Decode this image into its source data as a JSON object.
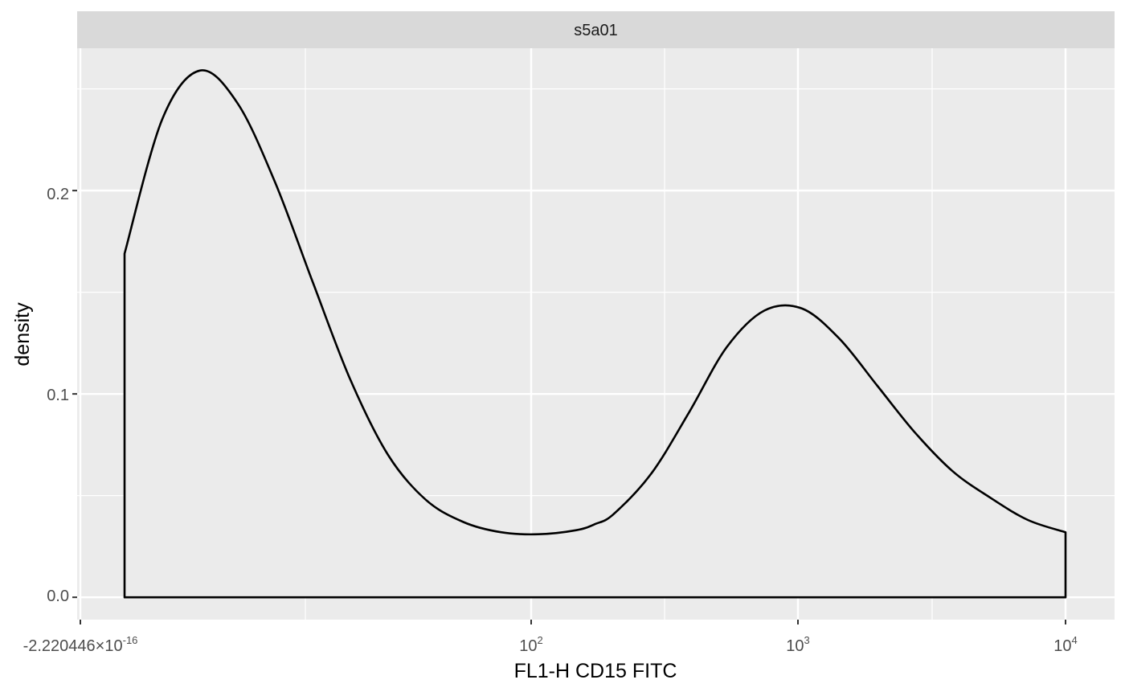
{
  "chart_data": {
    "type": "area",
    "facet_label": "s5a01",
    "xlabel": "FL1-H CD15 FITC",
    "ylabel": "density",
    "x_scale": "biexponential",
    "x_ticks": [
      {
        "label": "-2.220446×10",
        "sup": "-16"
      },
      {
        "label": "10",
        "sup": "2"
      },
      {
        "label": "10",
        "sup": "3"
      },
      {
        "label": "10",
        "sup": "4"
      }
    ],
    "y_ticks": [
      "0.0",
      "0.1",
      "0.2"
    ],
    "ylim": [
      -0.011,
      0.27
    ],
    "grid": true,
    "series": [
      {
        "fill": "#EBEBEB",
        "stroke": "#000000",
        "x_position": [
          0.0,
          0.04,
          0.08,
          0.12,
          0.16,
          0.2,
          0.24,
          0.28,
          0.32,
          0.36,
          0.4,
          0.44,
          0.48,
          0.5,
          0.52,
          0.56,
          0.6,
          0.64,
          0.68,
          0.72,
          0.76,
          0.8,
          0.84,
          0.88,
          0.92,
          0.96,
          1.0
        ],
        "density": [
          0.169,
          0.235,
          0.259,
          0.243,
          0.204,
          0.155,
          0.107,
          0.07,
          0.048,
          0.037,
          0.032,
          0.031,
          0.033,
          0.036,
          0.041,
          0.061,
          0.091,
          0.123,
          0.141,
          0.142,
          0.127,
          0.104,
          0.081,
          0.062,
          0.049,
          0.038,
          0.032
        ]
      }
    ]
  }
}
